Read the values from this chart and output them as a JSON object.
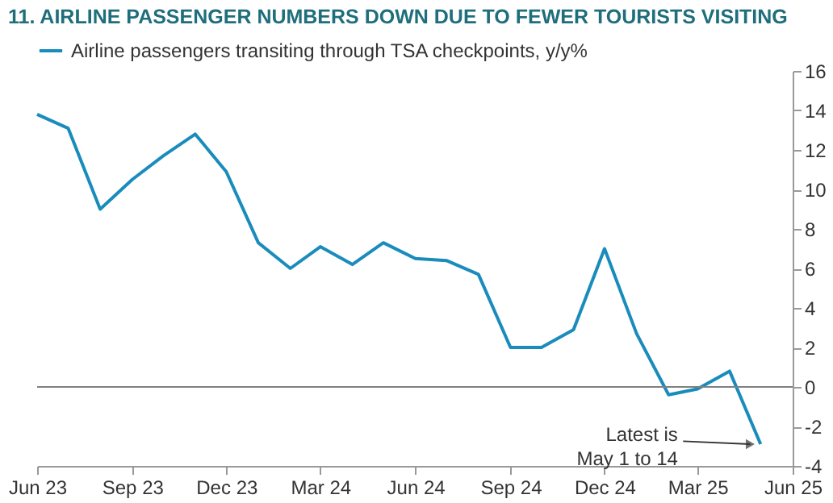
{
  "chart_data": {
    "type": "line",
    "title": "11. AIRLINE PASSENGER NUMBERS DOWN DUE TO FEWER TOURISTS VISITING",
    "x": [
      "2023-06",
      "2023-07",
      "2023-08",
      "2023-09",
      "2023-10",
      "2023-11",
      "2023-12",
      "2024-01",
      "2024-02",
      "2024-03",
      "2024-04",
      "2024-05",
      "2024-06",
      "2024-07",
      "2024-08",
      "2024-09",
      "2024-10",
      "2024-11",
      "2024-12",
      "2025-01",
      "2025-02",
      "2025-03",
      "2025-04",
      "2025-05"
    ],
    "series": [
      {
        "name": "Airline passengers transiting through TSA checkpoints,  y/y%",
        "color": "#1a8cbc",
        "values": [
          13.8,
          13.1,
          9.0,
          10.5,
          11.7,
          12.8,
          10.9,
          7.3,
          6.0,
          7.1,
          6.2,
          7.3,
          6.5,
          6.4,
          5.7,
          2.0,
          2.0,
          2.9,
          7.0,
          2.7,
          -0.4,
          -0.1,
          0.8,
          -2.9
        ]
      }
    ],
    "xlim": [
      "2023-06",
      "2025-06"
    ],
    "xticks": [
      {
        "value": "2023-06",
        "label": "Jun 23"
      },
      {
        "value": "2023-09",
        "label": "Sep 23"
      },
      {
        "value": "2023-12",
        "label": "Dec 23"
      },
      {
        "value": "2024-03",
        "label": "Mar 24"
      },
      {
        "value": "2024-06",
        "label": "Jun 24"
      },
      {
        "value": "2024-09",
        "label": "Sep 24"
      },
      {
        "value": "2024-12",
        "label": "Dec 24"
      },
      {
        "value": "2025-03",
        "label": "Mar 25"
      },
      {
        "value": "2025-06",
        "label": "Jun 25"
      }
    ],
    "ylim": [
      -4,
      16
    ],
    "yticks": [
      -4,
      -2,
      0,
      2,
      4,
      6,
      8,
      10,
      12,
      14,
      16
    ],
    "ref_lines": [
      {
        "axis": "y",
        "value": 0,
        "color": "#808080"
      }
    ],
    "annotations": [
      {
        "text": "Latest is\nMay 1 to 14",
        "x": "2025-05",
        "y": -2.9
      }
    ],
    "legend": "top left",
    "grid": false,
    "marker": "none",
    "line_style": "solid"
  }
}
